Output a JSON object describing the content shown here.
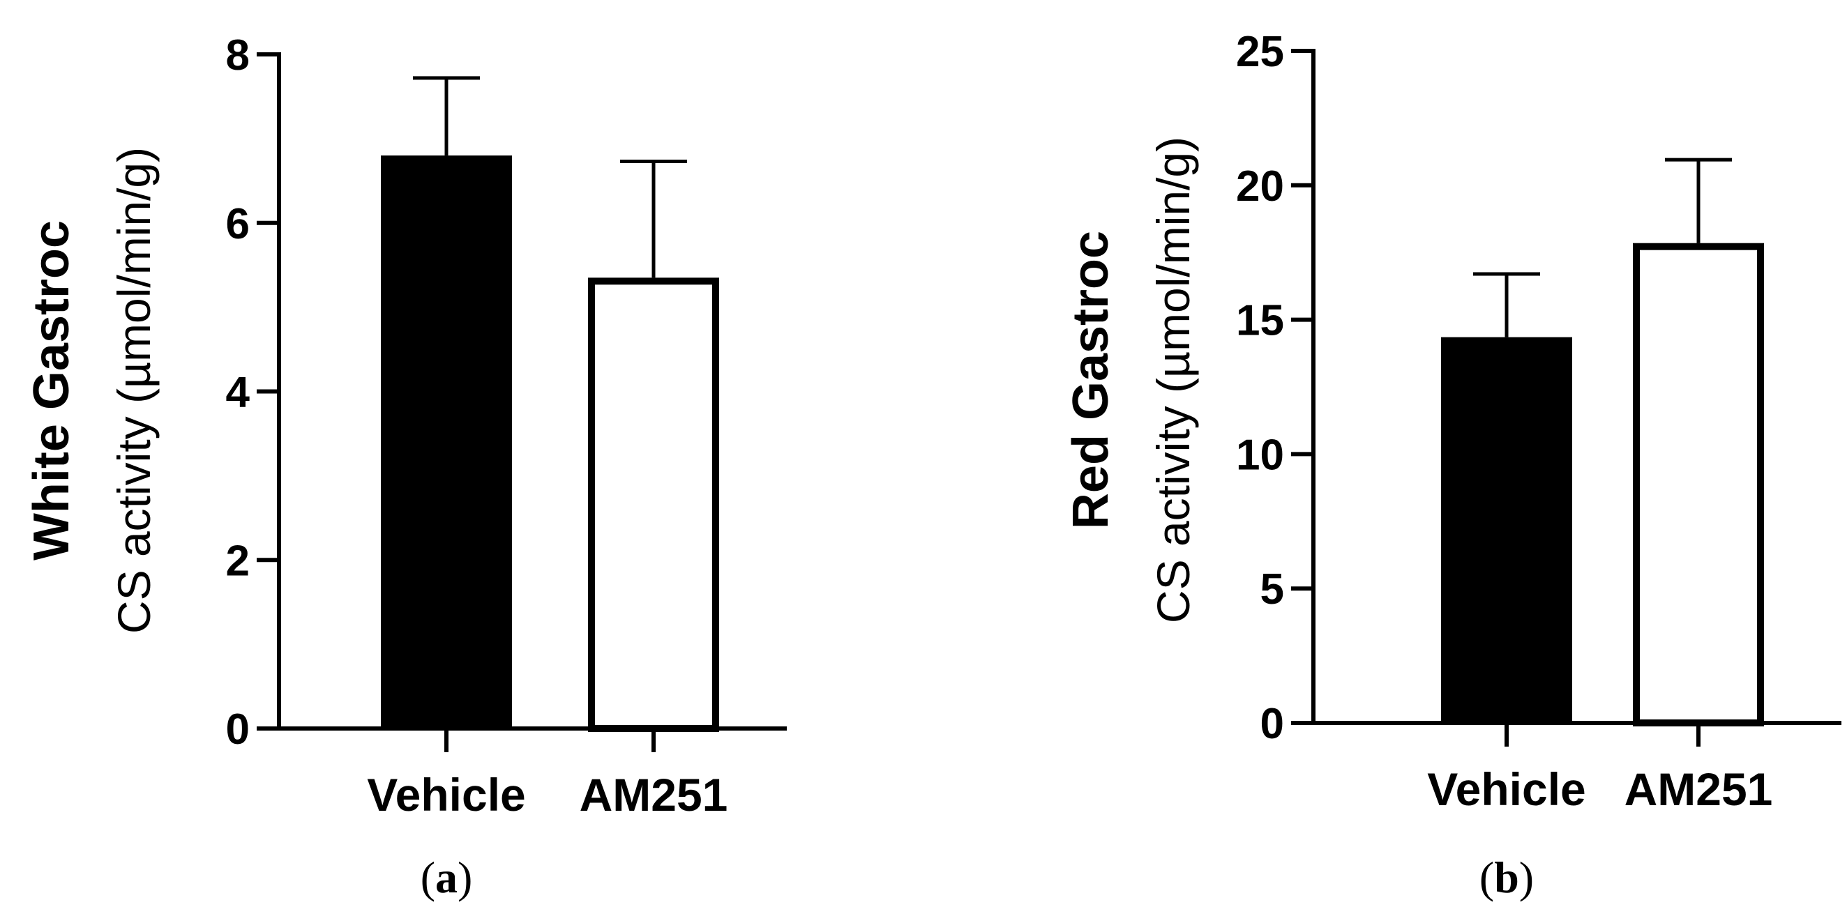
{
  "chart_data": [
    {
      "type": "bar",
      "panel_label": "(a)",
      "panel_letter": "a",
      "categories": [
        "Vehicle",
        "AM251"
      ],
      "values": [
        6.8,
        5.35
      ],
      "error": [
        0.92,
        1.38
      ],
      "bar_fill": [
        "#000000",
        "#ffffff"
      ],
      "ylabel_bold": "White Gastroc",
      "ylabel": "CS activity (µmol/min/g)",
      "ylim": [
        0,
        8
      ],
      "yticks": [
        0,
        2,
        4,
        6,
        8
      ],
      "grid": false
    },
    {
      "type": "bar",
      "panel_label": "(b)",
      "panel_letter": "b",
      "categories": [
        "Vehicle",
        "AM251"
      ],
      "values": [
        14.35,
        17.85
      ],
      "error": [
        2.35,
        3.1
      ],
      "bar_fill": [
        "#000000",
        "#ffffff"
      ],
      "ylabel_bold": "Red Gastroc",
      "ylabel": "CS activity (µmol/min/g)",
      "ylim": [
        0,
        25
      ],
      "yticks": [
        0,
        5,
        10,
        15,
        20,
        25
      ],
      "grid": false
    }
  ]
}
